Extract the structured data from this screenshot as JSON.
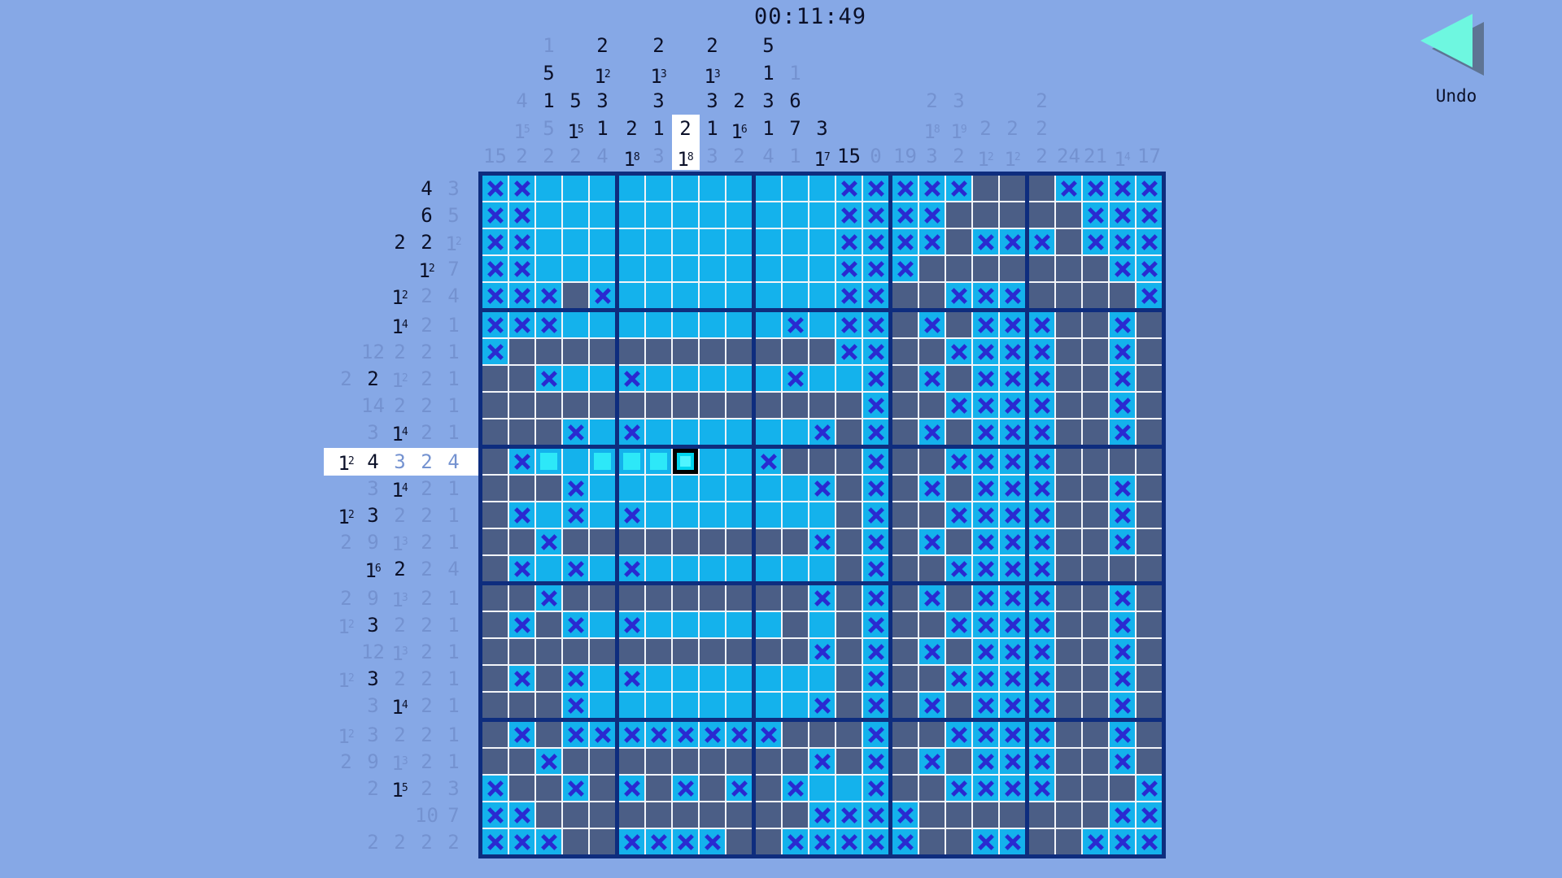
{
  "app": {
    "timer": "00:11:49",
    "undo_label": "Undo"
  },
  "colors": {
    "background": "#86a8e6",
    "cell_empty": "#14b2ec",
    "cell_filled": "#4b5e86",
    "cross": "#2a2ad0",
    "cell_just_placed": "#2de8f8",
    "cursor_border": "#000000",
    "cursor_fill": "#4ff4ff",
    "grid_line": "#f2f4f8",
    "grid_border": "#0e2d7e",
    "clue_active": "#0b1028",
    "clue_done": "#7492d0",
    "highlight": "#ffffff",
    "undo_triangle": "#6ef7e0",
    "undo_shadow": "#5e7494"
  },
  "board": {
    "size": 25,
    "cursor": {
      "row": 11,
      "col": 8
    },
    "highlighted_row": 11,
    "highlighted_col": 8,
    "cell_legend": {
      ".": "empty",
      "x": "crossed-out",
      "f": "filled",
      "b": "just-placed-fill",
      "c": "cursor-cell"
    },
    "cells": [
      "xx...........xxxxxfffxxxx",
      "xx...........xxxxfffffxxx",
      "xx...........xxxxfxxxfxxx",
      "xx...........xxxfffffffxx",
      "xxxfx........xxffxxxffffx",
      "xxx........x.xxfxfxxxffxf",
      "xffffffffffffxxffxxxxffxf",
      "ffx..x.....x..xfxfxxxffxf",
      "ffffffffffffffxffxxxxffxf",
      "fffx.x......xfxfxfxxxffxf",
      "fxb.bbbc..xfffxffxxxxffff",
      "fffx........xfxfxfxxxffxf",
      "fx.x.x.......fxffxxxxffxf",
      "ffxfffffffffxfxfxfxxxffxf",
      "fx.x.x.......fxffxxxxffff",
      "ffxfffffffffxfxfxfxxxffxf",
      "fxfx.x.....f.fxffxxxxffxf",
      "ffffffffffffxfxfxfxxxffxf",
      "fxfx.x.......fxffxxxxffxf",
      "fffx........xfxfxfxxxffxf",
      "fxfxxxxxxxxfffxffxxxxffxf",
      "ffxfffffffffxfxfxfxxxffxf",
      "xffxfxfxfxfx..xffxxxxfffx",
      "xxffffffffffxxxxfffffffxx",
      "xxxffxxxxffxxxxxffxxffxxx"
    ]
  },
  "row_clues": [
    [
      {
        "v": "4",
        "g": false
      },
      {
        "v": "3",
        "g": true
      }
    ],
    [
      {
        "v": "6",
        "g": false
      },
      {
        "v": "5",
        "g": true
      }
    ],
    [
      {
        "v": "2",
        "g": false
      },
      {
        "v": "2",
        "g": false
      },
      {
        "v": "1",
        "s": "2",
        "g": true
      }
    ],
    [
      {
        "v": "1",
        "s": "2",
        "g": false
      },
      {
        "v": "7",
        "g": true
      }
    ],
    [
      {
        "v": "1",
        "s": "2",
        "g": false
      },
      {
        "v": "2",
        "g": true
      },
      {
        "v": "4",
        "g": true
      }
    ],
    [
      {
        "v": "1",
        "s": "4",
        "g": false
      },
      {
        "v": "2",
        "g": true
      },
      {
        "v": "1",
        "g": true
      }
    ],
    [
      {
        "v": "12",
        "g": true
      },
      {
        "v": "2",
        "g": true
      },
      {
        "v": "2",
        "g": true
      },
      {
        "v": "1",
        "g": true
      }
    ],
    [
      {
        "v": "2",
        "g": true
      },
      {
        "v": "2",
        "g": false
      },
      {
        "v": "1",
        "s": "2",
        "g": true
      },
      {
        "v": "2",
        "g": true
      },
      {
        "v": "1",
        "g": true
      }
    ],
    [
      {
        "v": "14",
        "g": true
      },
      {
        "v": "2",
        "g": true
      },
      {
        "v": "2",
        "g": true
      },
      {
        "v": "1",
        "g": true
      }
    ],
    [
      {
        "v": "3",
        "g": true
      },
      {
        "v": "1",
        "s": "4",
        "g": false
      },
      {
        "v": "2",
        "g": true
      },
      {
        "v": "1",
        "g": true
      }
    ],
    [
      {
        "v": "1",
        "s": "2",
        "g": false
      },
      {
        "v": "4",
        "g": false
      },
      {
        "v": "3",
        "g": true
      },
      {
        "v": "2",
        "g": true
      },
      {
        "v": "4",
        "g": true
      }
    ],
    [
      {
        "v": "3",
        "g": true
      },
      {
        "v": "1",
        "s": "4",
        "g": false
      },
      {
        "v": "2",
        "g": true
      },
      {
        "v": "1",
        "g": true
      }
    ],
    [
      {
        "v": "1",
        "s": "2",
        "g": false
      },
      {
        "v": "3",
        "g": false
      },
      {
        "v": "2",
        "g": true
      },
      {
        "v": "2",
        "g": true
      },
      {
        "v": "1",
        "g": true
      }
    ],
    [
      {
        "v": "2",
        "g": true
      },
      {
        "v": "9",
        "g": true
      },
      {
        "v": "1",
        "s": "3",
        "g": true
      },
      {
        "v": "2",
        "g": true
      },
      {
        "v": "1",
        "g": true
      }
    ],
    [
      {
        "v": "1",
        "s": "6",
        "g": false
      },
      {
        "v": "2",
        "g": false
      },
      {
        "v": "2",
        "g": true
      },
      {
        "v": "4",
        "g": true
      }
    ],
    [
      {
        "v": "2",
        "g": true
      },
      {
        "v": "9",
        "g": true
      },
      {
        "v": "1",
        "s": "3",
        "g": true
      },
      {
        "v": "2",
        "g": true
      },
      {
        "v": "1",
        "g": true
      }
    ],
    [
      {
        "v": "1",
        "s": "2",
        "g": true
      },
      {
        "v": "3",
        "g": false
      },
      {
        "v": "2",
        "g": true
      },
      {
        "v": "2",
        "g": true
      },
      {
        "v": "1",
        "g": true
      }
    ],
    [
      {
        "v": "12",
        "g": true
      },
      {
        "v": "1",
        "s": "3",
        "g": true
      },
      {
        "v": "2",
        "g": true
      },
      {
        "v": "1",
        "g": true
      }
    ],
    [
      {
        "v": "1",
        "s": "2",
        "g": true
      },
      {
        "v": "3",
        "g": false
      },
      {
        "v": "2",
        "g": true
      },
      {
        "v": "2",
        "g": true
      },
      {
        "v": "1",
        "g": true
      }
    ],
    [
      {
        "v": "3",
        "g": true
      },
      {
        "v": "1",
        "s": "4",
        "g": false
      },
      {
        "v": "2",
        "g": true
      },
      {
        "v": "1",
        "g": true
      }
    ],
    [
      {
        "v": "1",
        "s": "2",
        "g": true
      },
      {
        "v": "3",
        "g": true
      },
      {
        "v": "2",
        "g": true
      },
      {
        "v": "2",
        "g": true
      },
      {
        "v": "1",
        "g": true
      }
    ],
    [
      {
        "v": "2",
        "g": true
      },
      {
        "v": "9",
        "g": true
      },
      {
        "v": "1",
        "s": "3",
        "g": true
      },
      {
        "v": "2",
        "g": true
      },
      {
        "v": "1",
        "g": true
      }
    ],
    [
      {
        "v": "2",
        "g": true
      },
      {
        "v": "1",
        "s": "5",
        "g": false
      },
      {
        "v": "2",
        "g": true
      },
      {
        "v": "3",
        "g": true
      }
    ],
    [
      {
        "v": "10",
        "g": true
      },
      {
        "v": "7",
        "g": true
      }
    ],
    [
      {
        "v": "2",
        "g": true
      },
      {
        "v": "2",
        "g": true
      },
      {
        "v": "2",
        "g": true
      },
      {
        "v": "2",
        "g": true
      }
    ]
  ],
  "col_clues": [
    [
      {
        "v": "15",
        "g": true
      }
    ],
    [
      {
        "v": "4",
        "g": true
      },
      {
        "v": "1",
        "s": "5",
        "g": true
      },
      {
        "v": "2",
        "g": true
      }
    ],
    [
      {
        "v": "1",
        "g": true
      },
      {
        "v": "5",
        "g": false
      },
      {
        "v": "1",
        "g": false
      },
      {
        "v": "5",
        "g": true
      },
      {
        "v": "2",
        "g": true
      }
    ],
    [
      {
        "v": "5",
        "g": false
      },
      {
        "v": "1",
        "s": "5",
        "g": false
      },
      {
        "v": "2",
        "g": true
      }
    ],
    [
      {
        "v": "2",
        "g": false
      },
      {
        "v": "1",
        "s": "2",
        "g": false
      },
      {
        "v": "3",
        "g": false
      },
      {
        "v": "1",
        "g": false
      },
      {
        "v": "4",
        "g": true
      }
    ],
    [
      {
        "v": "2",
        "g": false
      },
      {
        "v": "1",
        "s": "8",
        "g": false
      }
    ],
    [
      {
        "v": "2",
        "g": false
      },
      {
        "v": "1",
        "s": "3",
        "g": false
      },
      {
        "v": "3",
        "g": false
      },
      {
        "v": "1",
        "g": false
      },
      {
        "v": "3",
        "g": true
      }
    ],
    [
      {
        "v": "2",
        "g": false
      },
      {
        "v": "1",
        "s": "8",
        "g": false
      }
    ],
    [
      {
        "v": "2",
        "g": false
      },
      {
        "v": "1",
        "s": "3",
        "g": false
      },
      {
        "v": "3",
        "g": false
      },
      {
        "v": "1",
        "g": false
      },
      {
        "v": "3",
        "g": true
      }
    ],
    [
      {
        "v": "2",
        "g": false
      },
      {
        "v": "1",
        "s": "6",
        "g": false
      },
      {
        "v": "2",
        "g": true
      }
    ],
    [
      {
        "v": "5",
        "g": false
      },
      {
        "v": "1",
        "g": false
      },
      {
        "v": "3",
        "g": false
      },
      {
        "v": "1",
        "g": false
      },
      {
        "v": "4",
        "g": true
      }
    ],
    [
      {
        "v": "1",
        "g": true
      },
      {
        "v": "6",
        "g": false
      },
      {
        "v": "7",
        "g": false
      },
      {
        "v": "1",
        "g": true
      }
    ],
    [
      {
        "v": "3",
        "g": false
      },
      {
        "v": "1",
        "s": "7",
        "g": false
      }
    ],
    [
      {
        "v": "15",
        "g": false
      }
    ],
    [
      {
        "v": "0",
        "g": true
      }
    ],
    [
      {
        "v": "19",
        "g": true
      }
    ],
    [
      {
        "v": "2",
        "g": true
      },
      {
        "v": "1",
        "s": "8",
        "g": true
      },
      {
        "v": "3",
        "g": true
      }
    ],
    [
      {
        "v": "3",
        "g": true
      },
      {
        "v": "1",
        "s": "9",
        "g": true
      },
      {
        "v": "2",
        "g": true
      }
    ],
    [
      {
        "v": "2",
        "g": true
      },
      {
        "v": "1",
        "s": "2",
        "g": true
      }
    ],
    [
      {
        "v": "2",
        "g": true
      },
      {
        "v": "1",
        "s": "2",
        "g": true
      }
    ],
    [
      {
        "v": "2",
        "g": true
      },
      {
        "v": "2",
        "g": true
      },
      {
        "v": "2",
        "g": true
      }
    ],
    [
      {
        "v": "24",
        "g": true
      }
    ],
    [
      {
        "v": "21",
        "g": true
      }
    ],
    [
      {
        "v": "1",
        "s": "4",
        "g": true
      }
    ],
    [
      {
        "v": "17",
        "g": true
      }
    ]
  ]
}
